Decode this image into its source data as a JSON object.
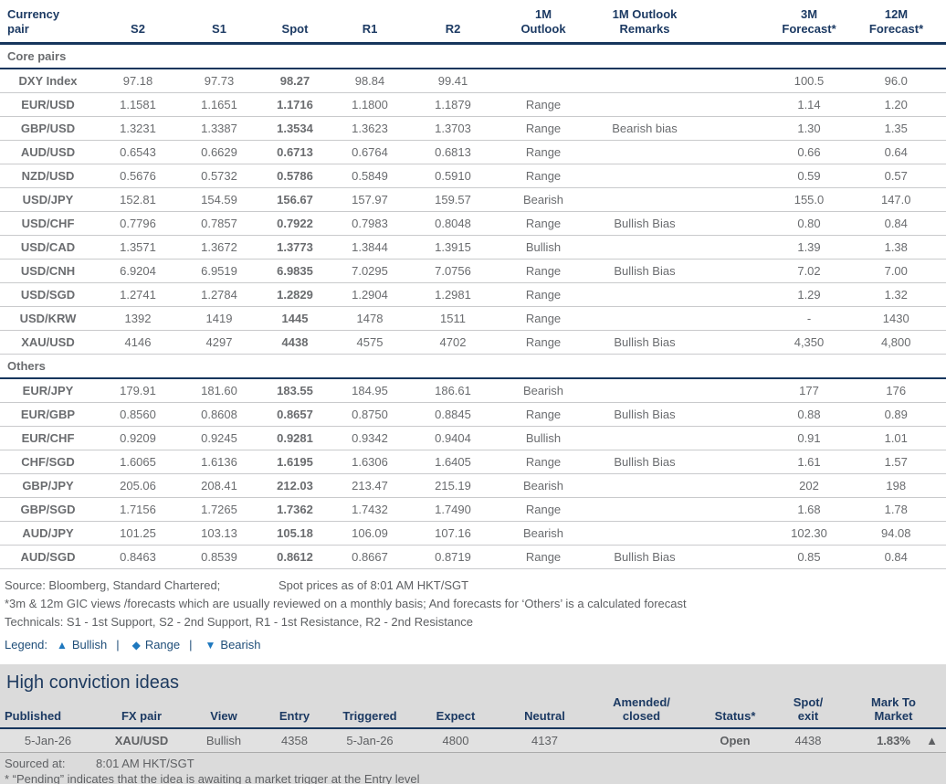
{
  "colors": {
    "navy": "#17365d",
    "amber_range": "#f2a51f",
    "red_bearish": "#f2394b",
    "teal_bullish": "#25aecb",
    "green_bullish": "#36a22e",
    "green_triangle": "#2bae49",
    "legend_blue": "#1e78be",
    "section_gray": "#dbdbdb"
  },
  "fx_table": {
    "headers": [
      "Currency\npair",
      "S2",
      "S1",
      "Spot",
      "R1",
      "R2",
      "1M\nOutlook",
      "1M Outlook\nRemarks",
      "3M\nForecast*",
      "12M\nForecast*"
    ],
    "sections": [
      {
        "label": "Core pairs",
        "rows": [
          {
            "pair": "DXY Index",
            "s2": "97.18",
            "s1": "97.73",
            "spot": "98.27",
            "r1": "98.84",
            "r2": "99.41",
            "outlook": "",
            "remarks": "",
            "f3m": "100.5",
            "f12m": "96.0"
          },
          {
            "pair": "EUR/USD",
            "s2": "1.1581",
            "s1": "1.1651",
            "spot": "1.1716",
            "r1": "1.1800",
            "r2": "1.1879",
            "outlook": "Range",
            "remarks": "",
            "f3m": "1.14",
            "f12m": "1.20"
          },
          {
            "pair": "GBP/USD",
            "s2": "1.3231",
            "s1": "1.3387",
            "spot": "1.3534",
            "r1": "1.3623",
            "r2": "1.3703",
            "outlook": "Range",
            "remarks": "Bearish bias",
            "f3m": "1.30",
            "f12m": "1.35"
          },
          {
            "pair": "AUD/USD",
            "s2": "0.6543",
            "s1": "0.6629",
            "spot": "0.6713",
            "r1": "0.6764",
            "r2": "0.6813",
            "outlook": "Range",
            "remarks": "",
            "f3m": "0.66",
            "f12m": "0.64"
          },
          {
            "pair": "NZD/USD",
            "s2": "0.5676",
            "s1": "0.5732",
            "spot": "0.5786",
            "r1": "0.5849",
            "r2": "0.5910",
            "outlook": "Range",
            "remarks": "",
            "f3m": "0.59",
            "f12m": "0.57"
          },
          {
            "pair": "USD/JPY",
            "s2": "152.81",
            "s1": "154.59",
            "spot": "156.67",
            "r1": "157.97",
            "r2": "159.57",
            "outlook": "Bearish",
            "remarks": "",
            "f3m": "155.0",
            "f12m": "147.0"
          },
          {
            "pair": "USD/CHF",
            "s2": "0.7796",
            "s1": "0.7857",
            "spot": "0.7922",
            "r1": "0.7983",
            "r2": "0.8048",
            "outlook": "Range",
            "remarks": "Bullish Bias",
            "f3m": "0.80",
            "f12m": "0.84"
          },
          {
            "pair": "USD/CAD",
            "s2": "1.3571",
            "s1": "1.3672",
            "spot": "1.3773",
            "r1": "1.3844",
            "r2": "1.3915",
            "outlook": "Bullish",
            "remarks": "",
            "f3m": "1.39",
            "f12m": "1.38"
          },
          {
            "pair": "USD/CNH",
            "s2": "6.9204",
            "s1": "6.9519",
            "spot": "6.9835",
            "r1": "7.0295",
            "r2": "7.0756",
            "outlook": "Range",
            "remarks": "Bullish Bias",
            "f3m": "7.02",
            "f12m": "7.00"
          },
          {
            "pair": "USD/SGD",
            "s2": "1.2741",
            "s1": "1.2784",
            "spot": "1.2829",
            "r1": "1.2904",
            "r2": "1.2981",
            "outlook": "Range",
            "remarks": "",
            "f3m": "1.29",
            "f12m": "1.32"
          },
          {
            "pair": "USD/KRW",
            "s2": "1392",
            "s1": "1419",
            "spot": "1445",
            "r1": "1478",
            "r2": "1511",
            "outlook": "Range",
            "remarks": "",
            "f3m": "-",
            "f12m": "1430"
          },
          {
            "pair": "XAU/USD",
            "s2": "4146",
            "s1": "4297",
            "spot": "4438",
            "r1": "4575",
            "r2": "4702",
            "outlook": "Range",
            "remarks": "Bullish Bias",
            "f3m": "4,350",
            "f12m": "4,800"
          }
        ]
      },
      {
        "label": "Others",
        "rows": [
          {
            "pair": "EUR/JPY",
            "s2": "179.91",
            "s1": "181.60",
            "spot": "183.55",
            "r1": "184.95",
            "r2": "186.61",
            "outlook": "Bearish",
            "remarks": "",
            "f3m": "177",
            "f12m": "176"
          },
          {
            "pair": "EUR/GBP",
            "s2": "0.8560",
            "s1": "0.8608",
            "spot": "0.8657",
            "r1": "0.8750",
            "r2": "0.8845",
            "outlook": "Range",
            "remarks": "Bullish Bias",
            "f3m": "0.88",
            "f12m": "0.89"
          },
          {
            "pair": "EUR/CHF",
            "s2": "0.9209",
            "s1": "0.9245",
            "spot": "0.9281",
            "r1": "0.9342",
            "r2": "0.9404",
            "outlook": "Bullish",
            "remarks": "",
            "f3m": "0.91",
            "f12m": "1.01"
          },
          {
            "pair": "CHF/SGD",
            "s2": "1.6065",
            "s1": "1.6136",
            "spot": "1.6195",
            "r1": "1.6306",
            "r2": "1.6405",
            "outlook": "Range",
            "remarks": "Bullish Bias",
            "f3m": "1.61",
            "f12m": "1.57"
          },
          {
            "pair": "GBP/JPY",
            "s2": "205.06",
            "s1": "208.41",
            "spot": "212.03",
            "r1": "213.47",
            "r2": "215.19",
            "outlook": "Bearish",
            "remarks": "",
            "f3m": "202",
            "f12m": "198"
          },
          {
            "pair": "GBP/SGD",
            "s2": "1.7156",
            "s1": "1.7265",
            "spot": "1.7362",
            "r1": "1.7432",
            "r2": "1.7490",
            "outlook": "Range",
            "remarks": "",
            "f3m": "1.68",
            "f12m": "1.78"
          },
          {
            "pair": "AUD/JPY",
            "s2": "101.25",
            "s1": "103.13",
            "spot": "105.18",
            "r1": "106.09",
            "r2": "107.16",
            "outlook": "Bearish",
            "remarks": "",
            "f3m": "102.30",
            "f12m": "94.08"
          },
          {
            "pair": "AUD/SGD",
            "s2": "0.8463",
            "s1": "0.8539",
            "spot": "0.8612",
            "r1": "0.8667",
            "r2": "0.8719",
            "outlook": "Range",
            "remarks": "Bullish Bias",
            "f3m": "0.85",
            "f12m": "0.84"
          }
        ]
      }
    ]
  },
  "footnotes": {
    "source": "Source: Bloomberg, Standard Chartered;",
    "spot_asof": "Spot prices as of 8:01 AM HKT/SGT",
    "note1": "*3m & 12m GIC views /forecasts which are usually reviewed on a monthly basis; And forecasts for ‘Others’ is a calculated forecast",
    "note2": "Technicals: S1 - 1st Support, S2 - 2nd Support, R1 - 1st Resistance, R2 - 2nd Resistance"
  },
  "legend": {
    "label": "Legend:",
    "items": [
      {
        "icon": "▲",
        "label": "Bullish"
      },
      {
        "icon": "◆",
        "label": "Range"
      },
      {
        "icon": "▼",
        "label": "Bearish"
      }
    ]
  },
  "ideas": {
    "title": "High conviction ideas",
    "headers": [
      "Published",
      "FX pair",
      "View",
      "Entry",
      "Triggered",
      "Expect",
      "Neutral",
      "Amended/\nclosed",
      "Status*",
      "Spot/\nexit",
      "Mark To\nMarket",
      ""
    ],
    "row": {
      "published": "5-Jan-26",
      "fx_pair": "XAU/USD",
      "view": "Bullish",
      "entry": "4358",
      "triggered": "5-Jan-26",
      "expect": "4800",
      "neutral": "4137",
      "amended_closed": "",
      "status": "Open",
      "spot_exit": "4438",
      "mark_to_market": "1.83%",
      "direction_icon": "▲"
    },
    "sourced_at_label": "Sourced at:",
    "sourced_at_value": "8:01 AM HKT/SGT",
    "footnote": "* “Pending” indicates that the idea is awaiting a market trigger at the Entry level"
  }
}
